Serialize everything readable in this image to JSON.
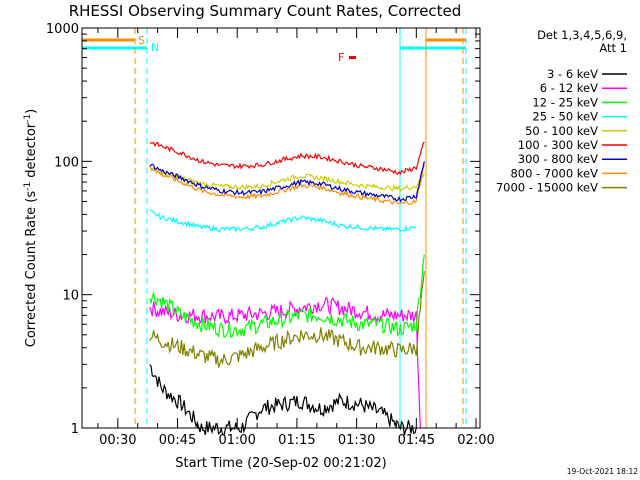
{
  "chart_data": {
    "type": "line",
    "title": "RHESSI Observing Summary Count Rates, Corrected",
    "xlabel": "Start Time (20-Sep-02 00:21:02)",
    "ylabel_prefix": "Corrected Count Rate (s",
    "ylabel_sup": "-1",
    "ylabel_mid": " detector",
    "ylabel_suffix": ")",
    "ylabel": "Corrected Count Rate (s-1 detector-1)",
    "yscale": "log",
    "ylim": [
      1,
      1000
    ],
    "xlim_minutes": [
      0,
      100
    ],
    "xticks": [
      {
        "t": 9,
        "label": "00:30"
      },
      {
        "t": 24,
        "label": "00:45"
      },
      {
        "t": 39,
        "label": "01:00"
      },
      {
        "t": 54,
        "label": "01:15"
      },
      {
        "t": 69,
        "label": "01:30"
      },
      {
        "t": 84,
        "label": "01:45"
      },
      {
        "t": 99,
        "label": "02:00"
      }
    ],
    "yticks": [
      {
        "v": 1,
        "label": "1"
      },
      {
        "v": 10,
        "label": "10"
      },
      {
        "v": 100,
        "label": "100"
      },
      {
        "v": 1000,
        "label": "1000"
      }
    ],
    "legend_header": [
      "Det 1,3,4,5,6,9,",
      "Att 1"
    ],
    "legend_position": "right",
    "series": [
      {
        "name": "3 - 6 keV",
        "color": "#000000",
        "x": [
          17,
          20,
          25,
          30,
          35,
          40,
          45,
          50,
          55,
          60,
          65,
          70,
          75,
          80,
          84
        ],
        "y": [
          3,
          2,
          1.5,
          1,
          1,
          1,
          1.4,
          1.5,
          1.6,
          1.4,
          1.6,
          1.5,
          1.3,
          1,
          1
        ]
      },
      {
        "name": "6 - 12 keV",
        "color": "#ff00ff",
        "x": [
          17,
          20,
          25,
          30,
          35,
          40,
          45,
          50,
          55,
          60,
          65,
          70,
          75,
          80,
          84,
          85
        ],
        "y": [
          8,
          7.5,
          7,
          7,
          6.8,
          7,
          7.2,
          7.5,
          8,
          8.5,
          8,
          7.5,
          7,
          7,
          7,
          1
        ]
      },
      {
        "name": "12 - 25 keV",
        "color": "#00ff00",
        "x": [
          17,
          20,
          25,
          30,
          35,
          40,
          45,
          50,
          55,
          60,
          65,
          70,
          75,
          80,
          84,
          86
        ],
        "y": [
          10,
          9,
          7,
          6,
          5.5,
          5.5,
          6,
          6.5,
          7,
          7,
          6.5,
          6,
          6,
          5.5,
          6,
          20
        ]
      },
      {
        "name": "25 - 50 keV",
        "color": "#00ffff",
        "x": [
          17,
          20,
          25,
          30,
          35,
          40,
          45,
          50,
          55,
          60,
          65,
          70,
          75,
          80,
          84
        ],
        "y": [
          42,
          38,
          35,
          32,
          31,
          31,
          32,
          35,
          38,
          36,
          33,
          32,
          31,
          31,
          32
        ]
      },
      {
        "name": "50 - 100 keV",
        "color": "#cccc00",
        "x": [
          17,
          20,
          25,
          30,
          35,
          40,
          45,
          50,
          55,
          60,
          65,
          70,
          75,
          80,
          84,
          86
        ],
        "y": [
          88,
          82,
          75,
          68,
          65,
          64,
          65,
          72,
          78,
          75,
          70,
          66,
          64,
          62,
          65,
          80
        ]
      },
      {
        "name": "100 - 300 keV",
        "color": "#ff0000",
        "x": [
          17,
          20,
          25,
          30,
          35,
          40,
          45,
          50,
          55,
          60,
          65,
          70,
          75,
          80,
          84,
          86
        ],
        "y": [
          140,
          130,
          115,
          100,
          93,
          92,
          94,
          102,
          110,
          108,
          100,
          92,
          88,
          82,
          90,
          140
        ]
      },
      {
        "name": "300 - 800 keV",
        "color": "#0000cc",
        "x": [
          17,
          20,
          25,
          30,
          35,
          40,
          45,
          50,
          55,
          60,
          65,
          70,
          75,
          80,
          84,
          86
        ],
        "y": [
          95,
          85,
          75,
          65,
          60,
          58,
          59,
          64,
          70,
          68,
          62,
          58,
          55,
          52,
          55,
          100
        ]
      },
      {
        "name": "800 - 7000 keV",
        "color": "#ff8c00",
        "x": [
          17,
          20,
          25,
          30,
          35,
          40,
          45,
          50,
          55,
          60,
          65,
          70,
          75,
          80,
          84,
          86
        ],
        "y": [
          92,
          80,
          70,
          60,
          56,
          54,
          55,
          60,
          66,
          64,
          58,
          54,
          51,
          48,
          50,
          95
        ]
      },
      {
        "name": "7000 - 15000 keV",
        "color": "#808000",
        "x": [
          17,
          20,
          25,
          30,
          35,
          40,
          45,
          50,
          55,
          60,
          65,
          70,
          75,
          80,
          84,
          86
        ],
        "y": [
          5,
          4.5,
          4,
          3.5,
          3.2,
          3.5,
          4,
          4.5,
          5,
          5,
          4.5,
          4,
          4,
          3.8,
          4,
          15
        ]
      }
    ],
    "markers": [
      {
        "kind": "S",
        "label": "S",
        "t": 13,
        "color": "#ff8c00"
      },
      {
        "kind": "N",
        "label": "N",
        "t": 16,
        "color": "#00ffff"
      },
      {
        "kind": "F",
        "label": "F",
        "t": 64,
        "color": "#ff0000"
      }
    ],
    "stamp": "19-Oct-2021 18:12"
  }
}
